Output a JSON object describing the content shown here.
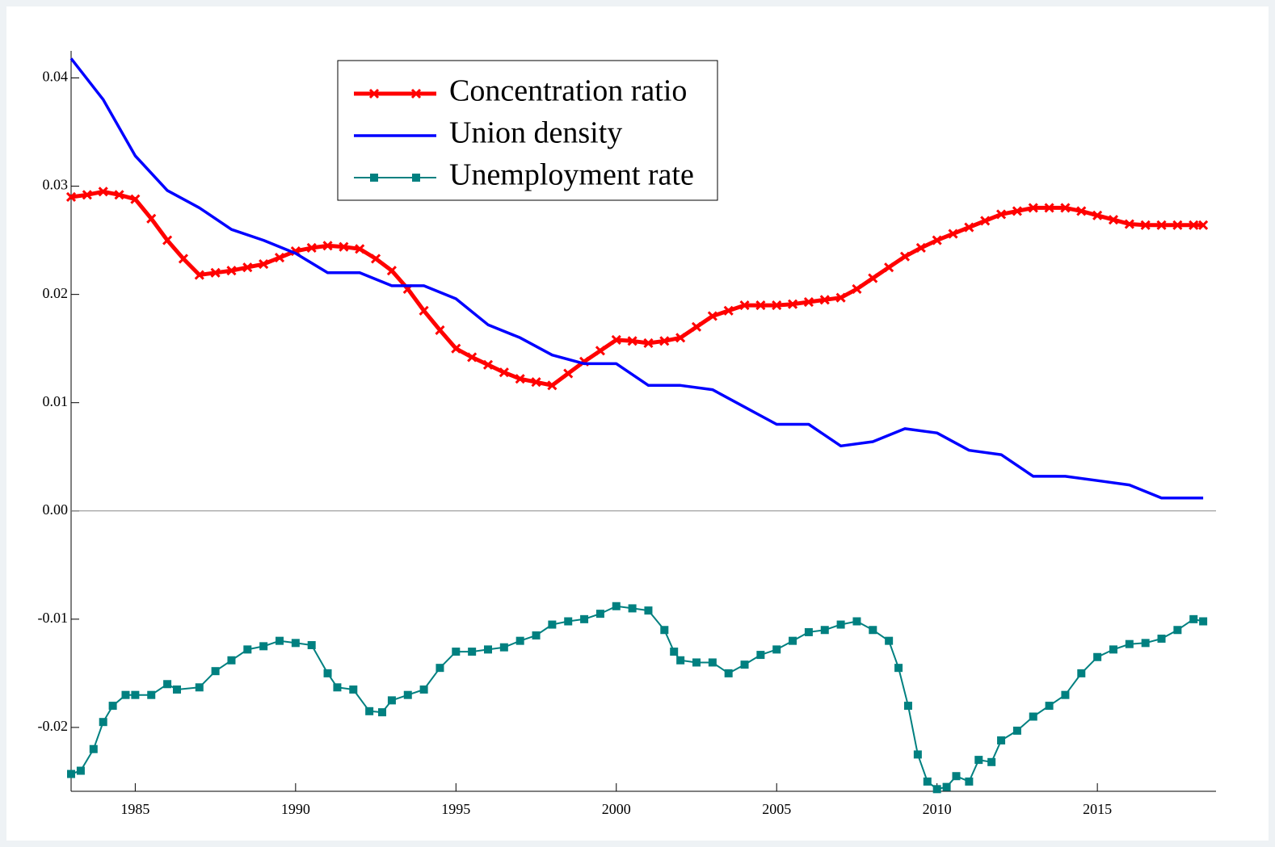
{
  "chart_data": {
    "type": "line",
    "xlim": [
      1983,
      2018.7
    ],
    "xticks": [
      1985,
      1990,
      1995,
      2000,
      2005,
      2010,
      2015
    ],
    "ylim": [
      -0.0259,
      0.0425
    ],
    "yticks": [
      0.04,
      0.03,
      0.02,
      0.01,
      {
        "value": 0,
        "label": "0.00"
      },
      -0.01,
      -0.02
    ],
    "zero_line": true,
    "legend_position": "upper center",
    "series": [
      {
        "name": "Concentration ratio",
        "color": "#ff0000",
        "marker": "x",
        "line_width": 5,
        "x": [
          1983,
          1983.5,
          1984,
          1984.5,
          1985,
          1985.5,
          1986,
          1986.5,
          1987,
          1987.5,
          1988,
          1988.5,
          1989,
          1989.5,
          1990,
          1990.5,
          1991,
          1991.5,
          1992,
          1992.5,
          1993,
          1993.5,
          1994,
          1994.5,
          1995,
          1995.5,
          1996,
          1996.5,
          1997,
          1997.5,
          1998,
          1998.5,
          1999,
          1999.5,
          2000,
          2000.5,
          2001,
          2001.5,
          2002,
          2002.5,
          2003,
          2003.5,
          2004,
          2004.5,
          2005,
          2005.5,
          2006,
          2006.5,
          2007,
          2007.5,
          2008,
          2008.5,
          2009,
          2009.5,
          2010,
          2010.5,
          2011,
          2011.5,
          2012,
          2012.5,
          2013,
          2013.5,
          2014,
          2014.5,
          2015,
          2015.5,
          2016,
          2016.5,
          2017,
          2017.5,
          2018,
          2018.3
        ],
        "values": [
          0.029,
          0.0292,
          0.0295,
          0.0292,
          0.0288,
          0.027,
          0.025,
          0.0233,
          0.0218,
          0.022,
          0.0222,
          0.0225,
          0.0228,
          0.0234,
          0.024,
          0.0243,
          0.0245,
          0.0244,
          0.0242,
          0.0233,
          0.0222,
          0.0205,
          0.0185,
          0.0167,
          0.015,
          0.0142,
          0.0135,
          0.0128,
          0.0122,
          0.0119,
          0.0116,
          0.0127,
          0.0138,
          0.0148,
          0.0158,
          0.0157,
          0.0155,
          0.0157,
          0.016,
          0.017,
          0.018,
          0.0185,
          0.019,
          0.019,
          0.019,
          0.0191,
          0.0193,
          0.0195,
          0.0197,
          0.0205,
          0.0215,
          0.0225,
          0.0235,
          0.0243,
          0.025,
          0.0256,
          0.0262,
          0.0268,
          0.0274,
          0.0277,
          0.028,
          0.028,
          0.028,
          0.0277,
          0.0273,
          0.0269,
          0.0265,
          0.0264,
          0.0264,
          0.0264,
          0.0264,
          0.0264
        ]
      },
      {
        "name": "Union density",
        "color": "#0000ff",
        "marker": "none",
        "line_width": 3.5,
        "x": [
          1983,
          1984,
          1985,
          1986,
          1987,
          1988,
          1989,
          1990,
          1991,
          1992,
          1993,
          1994,
          1995,
          1996,
          1997,
          1998,
          1999,
          2000,
          2001,
          2002,
          2003,
          2004,
          2005,
          2006,
          2007,
          2008,
          2009,
          2010,
          2011,
          2012,
          2013,
          2014,
          2015,
          2016,
          2017,
          2018.3
        ],
        "values": [
          0.0418,
          0.038,
          0.0328,
          0.0296,
          0.028,
          0.026,
          0.025,
          0.0238,
          0.022,
          0.022,
          0.0208,
          0.0208,
          0.0196,
          0.0172,
          0.016,
          0.0144,
          0.0136,
          0.0136,
          0.0116,
          0.0116,
          0.0112,
          0.0096,
          0.008,
          0.008,
          0.006,
          0.0064,
          0.0076,
          0.0072,
          0.0056,
          0.0052,
          0.0032,
          0.0032,
          0.0028,
          0.0024,
          0.0012,
          0.0012
        ]
      },
      {
        "name": "Unemployment rate",
        "color": "#008080",
        "marker": "square",
        "line_width": 2,
        "x": [
          1983,
          1983.3,
          1983.7,
          1984,
          1984.3,
          1984.7,
          1985,
          1985.5,
          1986,
          1986.3,
          1987,
          1987.5,
          1988,
          1988.5,
          1989,
          1989.5,
          1990,
          1990.5,
          1991,
          1991.3,
          1991.8,
          1992.3,
          1992.7,
          1993,
          1993.5,
          1994,
          1994.5,
          1995,
          1995.5,
          1996,
          1996.5,
          1997,
          1997.5,
          1998,
          1998.5,
          1999,
          1999.5,
          2000,
          2000.5,
          2001,
          2001.5,
          2001.8,
          2002,
          2002.5,
          2003,
          2003.5,
          2004,
          2004.5,
          2005,
          2005.5,
          2006,
          2006.5,
          2007,
          2007.5,
          2008,
          2008.5,
          2008.8,
          2009.1,
          2009.4,
          2009.7,
          2010,
          2010.3,
          2010.6,
          2011,
          2011.3,
          2011.7,
          2012,
          2012.5,
          2013,
          2013.5,
          2014,
          2014.5,
          2015,
          2015.5,
          2016,
          2016.5,
          2017,
          2017.5,
          2018,
          2018.3
        ],
        "values": [
          -0.0243,
          -0.024,
          -0.022,
          -0.0195,
          -0.018,
          -0.017,
          -0.017,
          -0.017,
          -0.016,
          -0.0165,
          -0.0163,
          -0.0148,
          -0.0138,
          -0.0128,
          -0.0125,
          -0.012,
          -0.0122,
          -0.0124,
          -0.015,
          -0.0163,
          -0.0165,
          -0.0185,
          -0.0186,
          -0.0175,
          -0.017,
          -0.0165,
          -0.0145,
          -0.013,
          -0.013,
          -0.0128,
          -0.0126,
          -0.012,
          -0.0115,
          -0.0105,
          -0.0102,
          -0.01,
          -0.0095,
          -0.0088,
          -0.009,
          -0.0092,
          -0.011,
          -0.013,
          -0.0138,
          -0.014,
          -0.014,
          -0.015,
          -0.0142,
          -0.0133,
          -0.0128,
          -0.012,
          -0.0112,
          -0.011,
          -0.0105,
          -0.0102,
          -0.011,
          -0.012,
          -0.0145,
          -0.018,
          -0.0225,
          -0.025,
          -0.0257,
          -0.0255,
          -0.0245,
          -0.025,
          -0.023,
          -0.0232,
          -0.0212,
          -0.0203,
          -0.019,
          -0.018,
          -0.017,
          -0.015,
          -0.0135,
          -0.0128,
          -0.0123,
          -0.0122,
          -0.0118,
          -0.011,
          -0.01,
          -0.0102
        ]
      }
    ]
  }
}
